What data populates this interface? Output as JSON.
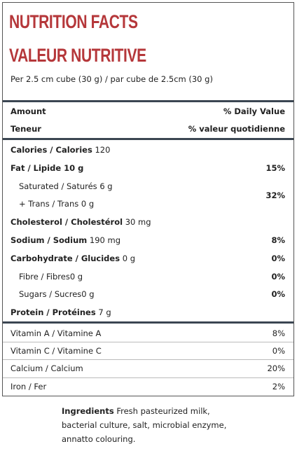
{
  "header": {
    "title_en": "NUTRITION FACTS",
    "title_fr": "VALEUR NUTRITIVE",
    "serving": "Per 2.5 cm cube (30 g) / par cube de 2.5cm (30 g)"
  },
  "table": {
    "head": [
      {
        "label": "Amount",
        "dv": "% Daily Value"
      },
      {
        "label": "Teneur",
        "dv": "% valeur quotidienne"
      }
    ],
    "nutrients": [
      {
        "name": "Calories / Calories",
        "amount": "120"
      },
      {
        "name": "Fat / Lipide 10 g",
        "dv": "15%"
      },
      {
        "sub": "Saturated / Saturés 6 g",
        "dv": "32%"
      },
      {
        "sub": "+ Trans / Trans 0 g"
      },
      {
        "name": "Cholesterol / Cholestérol",
        "amount": "30 mg"
      },
      {
        "name": "Sodium / Sodium",
        "amount": "190 mg",
        "dv": "8%"
      },
      {
        "name": "Carbohydrate / Glucides",
        "amount": "0 g",
        "dv": "0%"
      },
      {
        "sub": "Fibre / Fibres0 g",
        "dv": "0%"
      },
      {
        "sub": "Sugars / Sucres0 g",
        "dv": "0%"
      },
      {
        "name": "Protein / Protéines",
        "amount": "7 g"
      }
    ],
    "vitamins": [
      {
        "name": "Vitamin A / Vitamine A",
        "dv": "8%"
      },
      {
        "name": "Vitamin C / Vitamine C",
        "dv": "0%"
      },
      {
        "name": "Calcium / Calcium",
        "dv": "20%"
      },
      {
        "name": "Iron / Fer",
        "dv": "2%"
      }
    ]
  },
  "ingredients": {
    "label": "Ingredients",
    "text": "Fresh pasteurized milk, bacterial culture, salt, microbial enzyme, annatto colouring."
  }
}
